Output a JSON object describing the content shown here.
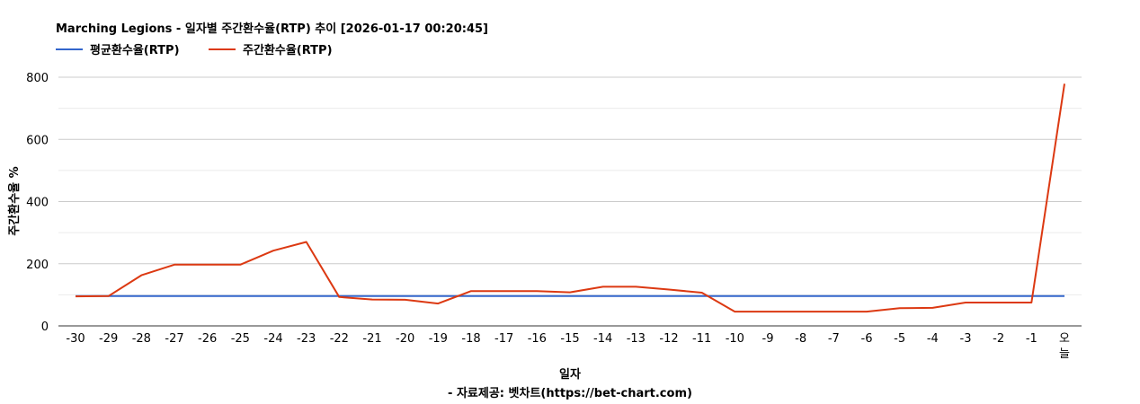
{
  "chart_data": {
    "type": "line",
    "title": "Marching Legions - 일자별 주간환수율(RTP) 추이 [2026-01-17 00:20:45]",
    "xlabel": "일자",
    "ylabel": "주간환수율 %",
    "credit": "- 자료제공: 벳차트(https://bet-chart.com)",
    "legend_position": "top-left",
    "grid": true,
    "ylim": [
      0,
      800
    ],
    "yticks": [
      "0",
      "200",
      "400",
      "600",
      "800"
    ],
    "categories": [
      "-30",
      "-29",
      "-28",
      "-27",
      "-26",
      "-25",
      "-24",
      "-23",
      "-22",
      "-21",
      "-20",
      "-19",
      "-18",
      "-17",
      "-16",
      "-15",
      "-14",
      "-13",
      "-12",
      "-11",
      "-10",
      "-9",
      "-8",
      "-7",
      "-6",
      "-5",
      "-4",
      "-3",
      "-2",
      "-1",
      "오늘"
    ],
    "series": [
      {
        "name": "평균환수율(RTP)",
        "color": "#3366cc",
        "values": [
          96,
          96,
          96,
          96,
          96,
          96,
          96,
          96,
          96,
          96,
          96,
          96,
          96,
          96,
          96,
          96,
          96,
          96,
          96,
          96,
          96,
          96,
          96,
          96,
          96,
          96,
          96,
          96,
          96,
          96,
          96
        ]
      },
      {
        "name": "주간환수율(RTP)",
        "color": "#dc3912",
        "values": [
          95,
          96,
          163,
          197,
          197,
          197,
          242,
          270,
          93,
          85,
          84,
          72,
          112,
          112,
          112,
          108,
          126,
          126,
          117,
          107,
          46,
          46,
          46,
          46,
          46,
          57,
          58,
          75,
          75,
          75,
          779
        ]
      }
    ]
  }
}
